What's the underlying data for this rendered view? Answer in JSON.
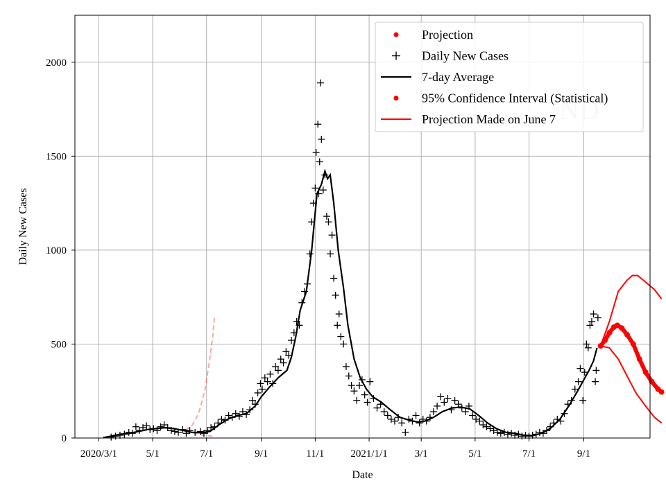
{
  "chart_data": {
    "type": "line",
    "title": "",
    "xlabel": "Date",
    "ylabel": "Daily New Cases",
    "ylim": [
      0,
      2250
    ],
    "xlim": [
      "2020-02-03",
      "2021-11-15"
    ],
    "grid": true,
    "legend_position": "top-right",
    "watermark": "ND",
    "x_ticks": [
      {
        "date": "2020-03-01",
        "label": "2020/3/1"
      },
      {
        "date": "2020-05-01",
        "label": "5/1"
      },
      {
        "date": "2020-07-01",
        "label": "7/1"
      },
      {
        "date": "2020-09-01",
        "label": "9/1"
      },
      {
        "date": "2020-11-01",
        "label": "11/1"
      },
      {
        "date": "2021-01-01",
        "label": "2021/1/1"
      },
      {
        "date": "2021-03-01",
        "label": "3/1"
      },
      {
        "date": "2021-05-01",
        "label": "5/1"
      },
      {
        "date": "2021-07-01",
        "label": "7/1"
      },
      {
        "date": "2021-09-01",
        "label": "9/1"
      }
    ],
    "y_ticks": [
      0,
      500,
      1000,
      1500,
      2000
    ],
    "legend": [
      {
        "label": "Projection",
        "marker": "dot",
        "color": "#ff0000"
      },
      {
        "label": "Daily New Cases",
        "marker": "plus",
        "color": "#000000"
      },
      {
        "label": "7-day Average",
        "marker": "line",
        "color": "#000000"
      },
      {
        "label": "95% Confidence Interval (Statistical)",
        "marker": "dot",
        "color": "#ff0000"
      },
      {
        "label": "Projection Made on June 7",
        "marker": "line",
        "color": "#ff0000"
      }
    ],
    "series": [
      {
        "name": "7-day Average",
        "color": "#000000",
        "points": [
          [
            "2020-03-06",
            2
          ],
          [
            "2020-03-15",
            10
          ],
          [
            "2020-03-25",
            20
          ],
          [
            "2020-04-05",
            25
          ],
          [
            "2020-04-15",
            35
          ],
          [
            "2020-04-25",
            45
          ],
          [
            "2020-05-05",
            50
          ],
          [
            "2020-05-15",
            55
          ],
          [
            "2020-05-25",
            50
          ],
          [
            "2020-06-05",
            40
          ],
          [
            "2020-06-15",
            30
          ],
          [
            "2020-06-25",
            28
          ],
          [
            "2020-07-05",
            35
          ],
          [
            "2020-07-15",
            70
          ],
          [
            "2020-07-25",
            100
          ],
          [
            "2020-08-05",
            120
          ],
          [
            "2020-08-15",
            130
          ],
          [
            "2020-08-25",
            170
          ],
          [
            "2020-09-01",
            220
          ],
          [
            "2020-09-10",
            270
          ],
          [
            "2020-09-20",
            320
          ],
          [
            "2020-09-30",
            360
          ],
          [
            "2020-10-05",
            430
          ],
          [
            "2020-10-10",
            540
          ],
          [
            "2020-10-15",
            680
          ],
          [
            "2020-10-22",
            780
          ],
          [
            "2020-10-28",
            1000
          ],
          [
            "2020-11-03",
            1300
          ],
          [
            "2020-11-08",
            1350
          ],
          [
            "2020-11-12",
            1420
          ],
          [
            "2020-11-15",
            1380
          ],
          [
            "2020-11-18",
            1400
          ],
          [
            "2020-11-22",
            1250
          ],
          [
            "2020-11-27",
            1000
          ],
          [
            "2020-12-03",
            800
          ],
          [
            "2020-12-08",
            600
          ],
          [
            "2020-12-15",
            420
          ],
          [
            "2020-12-22",
            320
          ],
          [
            "2020-12-29",
            260
          ],
          [
            "2021-01-05",
            220
          ],
          [
            "2021-01-15",
            190
          ],
          [
            "2021-01-25",
            150
          ],
          [
            "2021-02-05",
            110
          ],
          [
            "2021-02-15",
            95
          ],
          [
            "2021-02-25",
            85
          ],
          [
            "2021-03-05",
            90
          ],
          [
            "2021-03-15",
            110
          ],
          [
            "2021-03-25",
            140
          ],
          [
            "2021-04-05",
            160
          ],
          [
            "2021-04-15",
            165
          ],
          [
            "2021-04-25",
            155
          ],
          [
            "2021-05-05",
            120
          ],
          [
            "2021-05-15",
            80
          ],
          [
            "2021-05-25",
            50
          ],
          [
            "2021-06-05",
            30
          ],
          [
            "2021-06-15",
            25
          ],
          [
            "2021-06-25",
            15
          ],
          [
            "2021-07-05",
            12
          ],
          [
            "2021-07-15",
            25
          ],
          [
            "2021-07-25",
            50
          ],
          [
            "2021-08-05",
            100
          ],
          [
            "2021-08-15",
            170
          ],
          [
            "2021-08-25",
            250
          ],
          [
            "2021-09-01",
            310
          ],
          [
            "2021-09-07",
            360
          ],
          [
            "2021-09-12",
            410
          ],
          [
            "2021-09-16",
            480
          ]
        ]
      },
      {
        "name": "Projection",
        "color": "#ff0000",
        "points": [
          [
            "2021-09-20",
            490
          ],
          [
            "2021-09-25",
            520
          ],
          [
            "2021-09-30",
            560
          ],
          [
            "2021-10-05",
            590
          ],
          [
            "2021-10-09",
            600
          ],
          [
            "2021-10-14",
            585
          ],
          [
            "2021-10-20",
            550
          ],
          [
            "2021-10-27",
            500
          ],
          [
            "2021-11-03",
            420
          ],
          [
            "2021-11-10",
            350
          ],
          [
            "2021-11-17",
            300
          ],
          [
            "2021-11-24",
            260
          ],
          [
            "2021-11-28",
            245
          ]
        ]
      },
      {
        "name": "95% Confidence Interval (Statistical)",
        "color": "#ff0000",
        "upper": [
          [
            "2021-09-20",
            490
          ],
          [
            "2021-09-30",
            620
          ],
          [
            "2021-10-10",
            780
          ],
          [
            "2021-10-20",
            840
          ],
          [
            "2021-10-26",
            865
          ],
          [
            "2021-11-01",
            865
          ],
          [
            "2021-11-10",
            830
          ],
          [
            "2021-11-20",
            790
          ],
          [
            "2021-11-28",
            740
          ]
        ],
        "lower": [
          [
            "2021-09-20",
            490
          ],
          [
            "2021-09-30",
            480
          ],
          [
            "2021-10-10",
            420
          ],
          [
            "2021-10-20",
            330
          ],
          [
            "2021-10-30",
            240
          ],
          [
            "2021-11-10",
            170
          ],
          [
            "2021-11-20",
            110
          ],
          [
            "2021-11-28",
            80
          ]
        ]
      },
      {
        "name": "Projection Made on June 7",
        "color": "#ff0000",
        "style": "dashed",
        "opacity": 0.35,
        "main": [
          [
            "2020-06-07",
            40
          ],
          [
            "2020-06-15",
            70
          ],
          [
            "2020-06-22",
            130
          ],
          [
            "2020-06-29",
            250
          ],
          [
            "2020-07-04",
            400
          ],
          [
            "2020-07-08",
            540
          ],
          [
            "2020-07-10",
            650
          ]
        ],
        "lower": [
          [
            "2020-06-07",
            40
          ],
          [
            "2020-06-17",
            25
          ],
          [
            "2020-06-27",
            15
          ],
          [
            "2020-07-07",
            10
          ],
          [
            "2020-07-10",
            8
          ]
        ]
      }
    ],
    "daily_new_cases": [
      [
        "2020-03-15",
        5
      ],
      [
        "2020-03-20",
        10
      ],
      [
        "2020-03-25",
        15
      ],
      [
        "2020-03-30",
        20
      ],
      [
        "2020-04-04",
        30
      ],
      [
        "2020-04-08",
        25
      ],
      [
        "2020-04-12",
        60
      ],
      [
        "2020-04-16",
        40
      ],
      [
        "2020-04-20",
        55
      ],
      [
        "2020-04-24",
        65
      ],
      [
        "2020-04-28",
        45
      ],
      [
        "2020-05-02",
        50
      ],
      [
        "2020-05-06",
        40
      ],
      [
        "2020-05-10",
        60
      ],
      [
        "2020-05-14",
        70
      ],
      [
        "2020-05-18",
        55
      ],
      [
        "2020-05-22",
        40
      ],
      [
        "2020-05-26",
        35
      ],
      [
        "2020-05-30",
        30
      ],
      [
        "2020-06-04",
        45
      ],
      [
        "2020-06-08",
        25
      ],
      [
        "2020-06-12",
        40
      ],
      [
        "2020-06-18",
        30
      ],
      [
        "2020-06-24",
        35
      ],
      [
        "2020-06-28",
        25
      ],
      [
        "2020-07-02",
        40
      ],
      [
        "2020-07-06",
        55
      ],
      [
        "2020-07-10",
        60
      ],
      [
        "2020-07-14",
        80
      ],
      [
        "2020-07-18",
        100
      ],
      [
        "2020-07-22",
        95
      ],
      [
        "2020-07-26",
        120
      ],
      [
        "2020-07-30",
        110
      ],
      [
        "2020-08-03",
        130
      ],
      [
        "2020-08-07",
        115
      ],
      [
        "2020-08-11",
        140
      ],
      [
        "2020-08-15",
        125
      ],
      [
        "2020-08-19",
        150
      ],
      [
        "2020-08-22",
        200
      ],
      [
        "2020-08-25",
        180
      ],
      [
        "2020-08-28",
        240
      ],
      [
        "2020-08-31",
        290
      ],
      [
        "2020-09-02",
        260
      ],
      [
        "2020-09-05",
        320
      ],
      [
        "2020-09-08",
        300
      ],
      [
        "2020-09-11",
        340
      ],
      [
        "2020-09-14",
        290
      ],
      [
        "2020-09-17",
        380
      ],
      [
        "2020-09-20",
        360
      ],
      [
        "2020-09-23",
        420
      ],
      [
        "2020-09-26",
        400
      ],
      [
        "2020-09-29",
        460
      ],
      [
        "2020-10-02",
        440
      ],
      [
        "2020-10-05",
        520
      ],
      [
        "2020-10-08",
        560
      ],
      [
        "2020-10-11",
        620
      ],
      [
        "2020-10-14",
        600
      ],
      [
        "2020-10-17",
        720
      ],
      [
        "2020-10-20",
        780
      ],
      [
        "2020-10-23",
        820
      ],
      [
        "2020-10-26",
        980
      ],
      [
        "2020-10-28",
        1150
      ],
      [
        "2020-10-30",
        1250
      ],
      [
        "2020-11-01",
        1330
      ],
      [
        "2020-11-02",
        1520
      ],
      [
        "2020-11-04",
        1670
      ],
      [
        "2020-11-05",
        1300
      ],
      [
        "2020-11-06",
        1470
      ],
      [
        "2020-11-07",
        1890
      ],
      [
        "2020-11-08",
        1590
      ],
      [
        "2020-11-10",
        1320
      ],
      [
        "2020-11-12",
        1400
      ],
      [
        "2020-11-14",
        1180
      ],
      [
        "2020-11-16",
        1150
      ],
      [
        "2020-11-18",
        980
      ],
      [
        "2020-11-20",
        1080
      ],
      [
        "2020-11-22",
        850
      ],
      [
        "2020-11-24",
        760
      ],
      [
        "2020-11-26",
        600
      ],
      [
        "2020-11-28",
        660
      ],
      [
        "2020-11-30",
        540
      ],
      [
        "2020-12-03",
        500
      ],
      [
        "2020-12-06",
        380
      ],
      [
        "2020-12-09",
        330
      ],
      [
        "2020-12-12",
        280
      ],
      [
        "2020-12-15",
        250
      ],
      [
        "2020-12-18",
        200
      ],
      [
        "2020-12-21",
        280
      ],
      [
        "2020-12-24",
        310
      ],
      [
        "2020-12-27",
        230
      ],
      [
        "2020-12-30",
        190
      ],
      [
        "2021-01-02",
        300
      ],
      [
        "2021-01-06",
        210
      ],
      [
        "2021-01-10",
        160
      ],
      [
        "2021-01-14",
        180
      ],
      [
        "2021-01-18",
        140
      ],
      [
        "2021-01-22",
        120
      ],
      [
        "2021-01-26",
        100
      ],
      [
        "2021-01-30",
        90
      ],
      [
        "2021-02-03",
        110
      ],
      [
        "2021-02-07",
        80
      ],
      [
        "2021-02-11",
        30
      ],
      [
        "2021-02-15",
        100
      ],
      [
        "2021-02-19",
        90
      ],
      [
        "2021-02-23",
        120
      ],
      [
        "2021-02-27",
        80
      ],
      [
        "2021-03-03",
        100
      ],
      [
        "2021-03-07",
        90
      ],
      [
        "2021-03-11",
        110
      ],
      [
        "2021-03-15",
        140
      ],
      [
        "2021-03-19",
        170
      ],
      [
        "2021-03-23",
        220
      ],
      [
        "2021-03-27",
        190
      ],
      [
        "2021-03-31",
        210
      ],
      [
        "2021-04-04",
        150
      ],
      [
        "2021-04-08",
        200
      ],
      [
        "2021-04-12",
        180
      ],
      [
        "2021-04-16",
        160
      ],
      [
        "2021-04-20",
        140
      ],
      [
        "2021-04-24",
        170
      ],
      [
        "2021-04-28",
        120
      ],
      [
        "2021-05-02",
        100
      ],
      [
        "2021-05-06",
        90
      ],
      [
        "2021-05-10",
        70
      ],
      [
        "2021-05-14",
        60
      ],
      [
        "2021-05-18",
        50
      ],
      [
        "2021-05-22",
        40
      ],
      [
        "2021-05-26",
        30
      ],
      [
        "2021-05-30",
        25
      ],
      [
        "2021-06-03",
        30
      ],
      [
        "2021-06-07",
        20
      ],
      [
        "2021-06-11",
        25
      ],
      [
        "2021-06-15",
        15
      ],
      [
        "2021-06-19",
        20
      ],
      [
        "2021-06-23",
        10
      ],
      [
        "2021-06-27",
        15
      ],
      [
        "2021-07-01",
        10
      ],
      [
        "2021-07-05",
        15
      ],
      [
        "2021-07-09",
        20
      ],
      [
        "2021-07-13",
        30
      ],
      [
        "2021-07-17",
        25
      ],
      [
        "2021-07-21",
        40
      ],
      [
        "2021-07-25",
        60
      ],
      [
        "2021-07-29",
        80
      ],
      [
        "2021-08-02",
        100
      ],
      [
        "2021-08-06",
        90
      ],
      [
        "2021-08-10",
        130
      ],
      [
        "2021-08-14",
        180
      ],
      [
        "2021-08-18",
        200
      ],
      [
        "2021-08-22",
        260
      ],
      [
        "2021-08-26",
        300
      ],
      [
        "2021-08-28",
        370
      ],
      [
        "2021-08-31",
        200
      ],
      [
        "2021-09-02",
        350
      ],
      [
        "2021-09-04",
        500
      ],
      [
        "2021-09-06",
        480
      ],
      [
        "2021-09-08",
        600
      ],
      [
        "2021-09-10",
        620
      ],
      [
        "2021-09-12",
        660
      ],
      [
        "2021-09-14",
        300
      ],
      [
        "2021-09-15",
        360
      ],
      [
        "2021-09-17",
        640
      ]
    ]
  }
}
